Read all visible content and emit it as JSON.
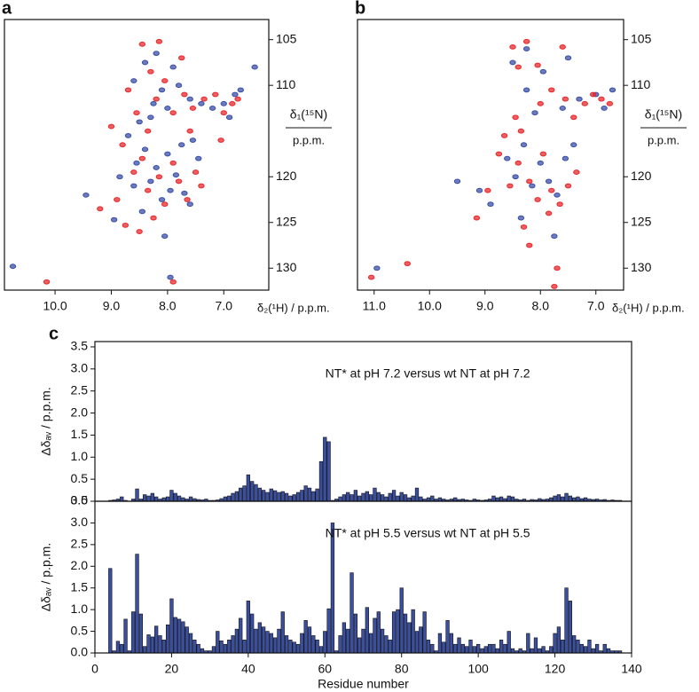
{
  "chart_data": [
    {
      "type": "scatter",
      "panel": "a",
      "x_label": "δ₂(¹H) / p.p.m.",
      "y_label": "δ₁(¹⁵N)",
      "y_label_unit": "p.p.m.",
      "xlim": [
        10.9,
        6.2
      ],
      "ylim": [
        132.4,
        102.8
      ],
      "y_axis_side": "right",
      "xticks": [
        {
          "value": 10,
          "label": "10.0"
        },
        {
          "value": 9,
          "label": "9.0"
        },
        {
          "value": 8,
          "label": "8.0"
        },
        {
          "value": 7,
          "label": "7.0"
        }
      ],
      "yticks": [
        105,
        110,
        120,
        125,
        130
      ],
      "series": [
        {
          "color": "#3b4fa8",
          "x": [
            10.75,
            9.45,
            8.95,
            8.6,
            8.55,
            8.4,
            8.3,
            8.2,
            8.1,
            8.0,
            7.95,
            7.85,
            7.7,
            7.6,
            7.55,
            7.45,
            8.7,
            8.5,
            8.3,
            8.25,
            8.1,
            8.0,
            7.8,
            7.6,
            7.4,
            7.2,
            7.0,
            6.9,
            6.8,
            6.7,
            6.45,
            8.4,
            8.2,
            7.9,
            8.6,
            8.05,
            7.95,
            8.85,
            8.45,
            7.75
          ],
          "values": [
            129.8,
            122.0,
            124.7,
            121.0,
            118.5,
            117.0,
            120.5,
            119.0,
            122.5,
            117.5,
            121.5,
            119.8,
            121.8,
            123.0,
            116.0,
            118.0,
            115.5,
            114.0,
            113.5,
            112.0,
            110.5,
            112.5,
            110.0,
            111.5,
            112.0,
            112.5,
            112.0,
            113.5,
            111.0,
            110.5,
            108.0,
            107.5,
            106.5,
            108.0,
            109.5,
            126.5,
            131.0,
            120.0,
            123.8,
            116.5
          ]
        },
        {
          "color": "#e8282b",
          "x": [
            10.15,
            9.2,
            8.9,
            8.75,
            8.6,
            8.45,
            8.35,
            8.15,
            8.05,
            7.9,
            7.8,
            7.65,
            7.5,
            7.4,
            8.8,
            8.55,
            8.35,
            8.2,
            8.05,
            7.9,
            7.7,
            7.55,
            7.35,
            7.15,
            7.0,
            6.85,
            6.75,
            8.45,
            8.15,
            7.75,
            8.3,
            9.0,
            8.7,
            7.9,
            8.25,
            8.5,
            7.6,
            7.05
          ],
          "values": [
            131.5,
            123.5,
            122.5,
            125.3,
            119.5,
            118.0,
            121.5,
            120.0,
            123.0,
            118.5,
            120.5,
            122.5,
            119.5,
            121.0,
            116.5,
            113.0,
            115.0,
            111.5,
            109.5,
            113.0,
            111.0,
            112.5,
            111.5,
            111.0,
            113.0,
            112.0,
            111.5,
            105.5,
            105.2,
            107.0,
            108.5,
            114.5,
            110.5,
            131.5,
            124.5,
            126.0,
            115.0,
            116.0
          ]
        }
      ]
    },
    {
      "type": "scatter",
      "panel": "b",
      "x_label": "δ₂(¹H) / p.p.m.",
      "y_label": "δ₁(¹⁵N)",
      "y_label_unit": "p.p.m.",
      "xlim": [
        11.3,
        6.5
      ],
      "ylim": [
        132.4,
        102.8
      ],
      "y_axis_side": "right",
      "xticks": [
        {
          "value": 11,
          "label": "11.0"
        },
        {
          "value": 10,
          "label": "10.0"
        },
        {
          "value": 9,
          "label": "9.0"
        },
        {
          "value": 8,
          "label": "8.0"
        },
        {
          "value": 7,
          "label": "7.0"
        }
      ],
      "yticks": [
        105,
        110,
        120,
        125,
        130
      ],
      "series": [
        {
          "color": "#3b4fa8",
          "x": [
            10.95,
            9.5,
            9.1,
            8.9,
            8.6,
            8.45,
            8.3,
            8.15,
            8.0,
            7.85,
            7.7,
            7.55,
            7.4,
            7.6,
            7.3,
            7.0,
            6.85,
            6.7,
            8.1,
            8.25,
            7.95,
            8.5,
            8.25,
            7.5,
            7.75,
            8.35
          ],
          "values": [
            130.0,
            120.5,
            121.5,
            123.0,
            118.0,
            120.0,
            116.5,
            121.0,
            118.5,
            120.5,
            122.0,
            118.0,
            116.5,
            112.5,
            111.5,
            111.0,
            112.5,
            110.5,
            113.0,
            110.5,
            108.5,
            107.5,
            106.0,
            107.0,
            126.5,
            124.5
          ]
        },
        {
          "color": "#e8282b",
          "x": [
            11.05,
            10.4,
            9.15,
            8.95,
            8.75,
            8.55,
            8.4,
            8.2,
            8.05,
            7.95,
            7.8,
            7.65,
            7.5,
            7.35,
            8.65,
            8.45,
            8.35,
            8.0,
            7.8,
            7.55,
            7.4,
            7.2,
            7.05,
            6.9,
            6.75,
            8.5,
            8.25,
            7.6,
            8.4,
            8.05,
            7.7,
            7.75,
            8.3,
            7.85,
            8.2
          ],
          "values": [
            131.0,
            129.5,
            124.5,
            121.5,
            117.5,
            121.0,
            118.5,
            120.5,
            122.5,
            117.5,
            121.5,
            123.0,
            121.0,
            119.5,
            115.5,
            113.5,
            115.0,
            112.0,
            110.5,
            111.5,
            113.5,
            112.0,
            111.0,
            111.5,
            112.0,
            105.8,
            105.2,
            105.8,
            108.0,
            107.8,
            130.0,
            132.0,
            125.5,
            124.0,
            127.5
          ]
        }
      ]
    },
    {
      "type": "bar",
      "panel": "c",
      "annotation": "NT* at pH 7.2 versus wt NT at pH 7.2",
      "y_label": "Δδₐᵥ / p.p.m.",
      "color": "#3a4fa0",
      "xlim": [
        0,
        140
      ],
      "ylim": [
        0,
        3.62
      ],
      "yticks": [
        {
          "value": 0,
          "label": "0.0"
        },
        {
          "value": 0.5,
          "label": "0.5"
        },
        {
          "value": 1,
          "label": "1.0"
        },
        {
          "value": 1.5,
          "label": "1.5"
        },
        {
          "value": 2,
          "label": "2.0"
        },
        {
          "value": 2.5,
          "label": "2.5"
        },
        {
          "value": 3,
          "label": "3.0"
        },
        {
          "value": 3.5,
          "label": "3.5"
        }
      ],
      "x": [
        1,
        2,
        3,
        4,
        5,
        6,
        7,
        8,
        9,
        10,
        11,
        12,
        13,
        14,
        15,
        16,
        17,
        18,
        19,
        20,
        21,
        22,
        23,
        24,
        25,
        26,
        27,
        28,
        29,
        30,
        31,
        32,
        33,
        34,
        35,
        36,
        37,
        38,
        39,
        40,
        41,
        42,
        43,
        44,
        45,
        46,
        47,
        48,
        49,
        50,
        51,
        52,
        53,
        54,
        55,
        56,
        57,
        58,
        59,
        60,
        61,
        62,
        63,
        64,
        65,
        66,
        67,
        68,
        69,
        70,
        71,
        72,
        73,
        74,
        75,
        76,
        77,
        78,
        79,
        80,
        81,
        82,
        83,
        84,
        85,
        86,
        87,
        88,
        89,
        90,
        91,
        92,
        93,
        94,
        95,
        96,
        97,
        98,
        99,
        100,
        101,
        102,
        103,
        104,
        105,
        106,
        107,
        108,
        109,
        110,
        111,
        112,
        113,
        114,
        115,
        116,
        117,
        118,
        119,
        120,
        121,
        122,
        123,
        124,
        125,
        126,
        127,
        128,
        129,
        130,
        131,
        132,
        133,
        134,
        135,
        136,
        137
      ],
      "values": [
        null,
        null,
        null,
        0.02,
        0.03,
        0.05,
        0.1,
        0.02,
        0,
        0.05,
        0.28,
        0.05,
        0.15,
        0.12,
        0.18,
        0.1,
        0.05,
        0.08,
        0.1,
        0.25,
        0.18,
        0.12,
        0.08,
        0.05,
        0.1,
        0.06,
        0.04,
        0.03,
        0.05,
        0.02,
        0.02,
        0.03,
        0.06,
        0.1,
        0.12,
        0.18,
        0.22,
        0.3,
        0.35,
        0.6,
        0.45,
        0.38,
        0.3,
        0.25,
        0.2,
        0.28,
        0.24,
        0.2,
        0.22,
        0.18,
        0.12,
        0.15,
        0.2,
        0.25,
        0.35,
        0.3,
        0.22,
        0.28,
        0.9,
        1.45,
        1.35,
        0.02,
        0.05,
        0.1,
        0.15,
        0.2,
        0.15,
        0.25,
        0.12,
        0.18,
        0.22,
        0.15,
        0.3,
        0.2,
        0.15,
        0.1,
        0.18,
        0.25,
        0.12,
        0.2,
        0.15,
        0.08,
        0.12,
        0.3,
        0.1,
        0.05,
        0.08,
        0.12,
        0.05,
        0.08,
        0.05,
        0.03,
        0.05,
        0.08,
        0.04,
        0.05,
        0.03,
        0.02,
        0.05,
        0.03,
        0.02,
        0.03,
        0.05,
        0.12,
        0.08,
        0.1,
        0.06,
        0.12,
        0.1,
        0.05,
        0.03,
        0.05,
        0.02,
        0.04,
        0.03,
        0.06,
        0.04,
        0.05,
        0.08,
        0.12,
        0.15,
        0.1,
        0.18,
        0.12,
        0.08,
        0.1,
        0.06,
        0.08,
        0.05,
        0.04,
        0.05,
        0.03,
        0.04,
        0.02,
        0.03,
        0.02,
        0.02
      ]
    },
    {
      "type": "bar",
      "annotation": "NT* at pH 5.5 versus wt NT at pH 5.5",
      "y_label": "Δδₐᵥ / p.p.m.",
      "x_label": "Residue number",
      "color": "#3a4fa0",
      "xlim": [
        0,
        140
      ],
      "ylim": [
        0,
        3.5
      ],
      "xticks": [
        0,
        20,
        40,
        60,
        80,
        100,
        120,
        140
      ],
      "yticks": [
        {
          "value": 0,
          "label": "0.0"
        },
        {
          "value": 0.5,
          "label": "0.5"
        },
        {
          "value": 1,
          "label": "1.0"
        },
        {
          "value": 1.5,
          "label": "1.5"
        },
        {
          "value": 2,
          "label": "2.0"
        },
        {
          "value": 2.5,
          "label": "2.5"
        },
        {
          "value": 3,
          "label": "3.0"
        },
        {
          "value": 3.5,
          "label": "3.5"
        }
      ],
      "x": [
        1,
        2,
        3,
        4,
        5,
        6,
        7,
        8,
        9,
        10,
        11,
        12,
        13,
        14,
        15,
        16,
        17,
        18,
        19,
        20,
        21,
        22,
        23,
        24,
        25,
        26,
        27,
        28,
        29,
        30,
        31,
        32,
        33,
        34,
        35,
        36,
        37,
        38,
        39,
        40,
        41,
        42,
        43,
        44,
        45,
        46,
        47,
        48,
        49,
        50,
        51,
        52,
        53,
        54,
        55,
        56,
        57,
        58,
        59,
        60,
        61,
        62,
        63,
        64,
        65,
        66,
        67,
        68,
        69,
        70,
        71,
        72,
        73,
        74,
        75,
        76,
        77,
        78,
        79,
        80,
        81,
        82,
        83,
        84,
        85,
        86,
        87,
        88,
        89,
        90,
        91,
        92,
        93,
        94,
        95,
        96,
        97,
        98,
        99,
        100,
        101,
        102,
        103,
        104,
        105,
        106,
        107,
        108,
        109,
        110,
        111,
        112,
        113,
        114,
        115,
        116,
        117,
        118,
        119,
        120,
        121,
        122,
        123,
        124,
        125,
        126,
        127,
        128,
        129,
        130,
        131,
        132,
        133,
        134,
        135,
        136,
        137
      ],
      "values": [
        null,
        null,
        null,
        1.95,
        0.05,
        0.27,
        0.2,
        0.78,
        0.05,
        0.95,
        2.28,
        0.9,
        0.15,
        0.42,
        0.37,
        0.62,
        0.4,
        0.3,
        0.65,
        1.25,
        0.82,
        0.78,
        0.72,
        0.6,
        0.45,
        0.3,
        0.2,
        0.1,
        0.05,
        0.05,
        0.15,
        0.5,
        0.28,
        0.2,
        0.3,
        0.4,
        0.55,
        0.8,
        0.3,
        1.2,
        0.9,
        0.55,
        0.7,
        0.6,
        0.5,
        0.45,
        0.35,
        0.55,
        0.95,
        0.4,
        0.3,
        0.25,
        0.2,
        0.45,
        0.75,
        0.6,
        0.4,
        0.3,
        0.15,
        0.5,
        1.02,
        3.0,
        0.05,
        0.4,
        0.7,
        0.55,
        1.85,
        0.9,
        0.35,
        0.55,
        1.05,
        0.45,
        0.8,
        0.95,
        0.55,
        0.4,
        0.3,
        0.95,
        1.0,
        1.5,
        0.9,
        0.7,
        1.0,
        0.5,
        0.6,
        0.95,
        0.3,
        0.2,
        0.05,
        0.45,
        0.25,
        0.75,
        0.45,
        0.2,
        0.35,
        0.2,
        0.15,
        0.3,
        0.15,
        0.2,
        0.1,
        0.15,
        0.2,
        0.2,
        0.1,
        0.3,
        0.2,
        0.5,
        0.1,
        0.05,
        0.1,
        0.05,
        0.45,
        0.1,
        0.35,
        0.1,
        0.15,
        0.05,
        0.15,
        0.45,
        0.6,
        0.3,
        1.5,
        1.2,
        0.4,
        0.3,
        0.2,
        0.15,
        0.3,
        0.1,
        0.2,
        0.05,
        0.2,
        0.1,
        0.05,
        0.05,
        0.05
      ]
    }
  ]
}
